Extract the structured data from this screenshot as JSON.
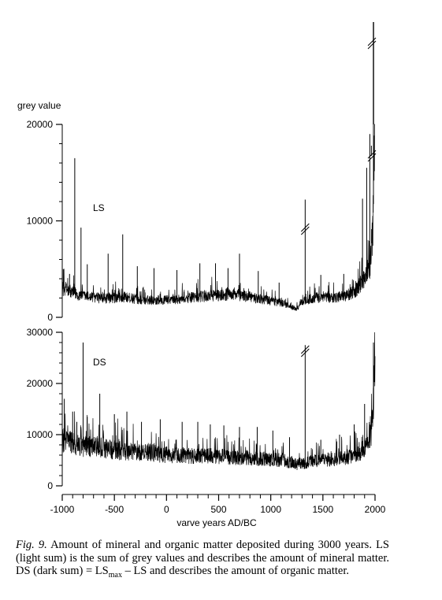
{
  "chart_data": [
    {
      "type": "line",
      "panel": "top",
      "title": "",
      "ylabel": "grey value",
      "xlabel": "",
      "series_label": "LS",
      "ylim": [
        0,
        20000
      ],
      "yticks": [
        "0",
        "10000",
        "20000"
      ],
      "xlim": [
        -1000,
        2000
      ],
      "axis_break_at_x": [
        1330,
        1970
      ],
      "baseline": [
        [
          -1000,
          3000
        ],
        [
          -900,
          2600
        ],
        [
          -800,
          2200
        ],
        [
          -700,
          2100
        ],
        [
          -600,
          1900
        ],
        [
          -500,
          2000
        ],
        [
          -400,
          2100
        ],
        [
          -300,
          1900
        ],
        [
          -200,
          1800
        ],
        [
          -100,
          1800
        ],
        [
          0,
          1800
        ],
        [
          100,
          1900
        ],
        [
          200,
          2000
        ],
        [
          300,
          2100
        ],
        [
          400,
          2200
        ],
        [
          500,
          2300
        ],
        [
          600,
          2400
        ],
        [
          700,
          2300
        ],
        [
          800,
          2100
        ],
        [
          900,
          1900
        ],
        [
          1000,
          1700
        ],
        [
          1100,
          1500
        ],
        [
          1200,
          1100
        ],
        [
          1250,
          900
        ],
        [
          1300,
          1600
        ],
        [
          1400,
          2000
        ],
        [
          1500,
          2100
        ],
        [
          1600,
          2000
        ],
        [
          1700,
          2200
        ],
        [
          1800,
          2600
        ],
        [
          1850,
          3200
        ],
        [
          1900,
          4000
        ],
        [
          1950,
          5500
        ],
        [
          1980,
          9000
        ],
        [
          2000,
          20000
        ]
      ],
      "spikes": [
        [
          -990,
          5000
        ],
        [
          -930,
          4500
        ],
        [
          -880,
          16500
        ],
        [
          -820,
          9300
        ],
        [
          -760,
          5500
        ],
        [
          -560,
          6600
        ],
        [
          -420,
          8600
        ],
        [
          -280,
          5300
        ],
        [
          -120,
          5100
        ],
        [
          100,
          4900
        ],
        [
          320,
          5600
        ],
        [
          470,
          5600
        ],
        [
          590,
          5100
        ],
        [
          700,
          6600
        ],
        [
          880,
          4800
        ],
        [
          1080,
          3600
        ],
        [
          1330,
          12200
        ],
        [
          1480,
          4400
        ],
        [
          1700,
          4500
        ],
        [
          1880,
          12300
        ],
        [
          1920,
          15500
        ],
        [
          1950,
          19000
        ],
        [
          1985,
          20000
        ]
      ]
    },
    {
      "type": "line",
      "panel": "bottom",
      "title": "",
      "ylabel": "",
      "xlabel": "varve years AD/BC",
      "series_label": "DS",
      "ylim": [
        0,
        30000
      ],
      "yticks": [
        "0",
        "10000",
        "20000",
        "30000"
      ],
      "xlim": [
        -1000,
        2000
      ],
      "xticks": [
        "-1000",
        "-500",
        "0",
        "500",
        "1000",
        "1500",
        "2000"
      ],
      "axis_break_at_x": [
        1330
      ],
      "baseline": [
        [
          -1000,
          9000
        ],
        [
          -900,
          8200
        ],
        [
          -800,
          7800
        ],
        [
          -700,
          7600
        ],
        [
          -600,
          7400
        ],
        [
          -500,
          7000
        ],
        [
          -400,
          6800
        ],
        [
          -300,
          6700
        ],
        [
          -200,
          6500
        ],
        [
          -100,
          6300
        ],
        [
          0,
          6100
        ],
        [
          100,
          6000
        ],
        [
          200,
          5800
        ],
        [
          300,
          5800
        ],
        [
          400,
          5900
        ],
        [
          500,
          5700
        ],
        [
          600,
          5600
        ],
        [
          700,
          5600
        ],
        [
          800,
          5500
        ],
        [
          900,
          5300
        ],
        [
          1000,
          5200
        ],
        [
          1100,
          5000
        ],
        [
          1200,
          4600
        ],
        [
          1250,
          4200
        ],
        [
          1300,
          4400
        ],
        [
          1400,
          4800
        ],
        [
          1500,
          5000
        ],
        [
          1600,
          5200
        ],
        [
          1700,
          5500
        ],
        [
          1800,
          6000
        ],
        [
          1850,
          6600
        ],
        [
          1900,
          7300
        ],
        [
          1950,
          8500
        ],
        [
          1980,
          13000
        ],
        [
          2000,
          28000
        ]
      ],
      "spikes": [
        [
          -980,
          17000
        ],
        [
          -900,
          14500
        ],
        [
          -860,
          12500
        ],
        [
          -800,
          28000
        ],
        [
          -760,
          13500
        ],
        [
          -640,
          18000
        ],
        [
          -500,
          14000
        ],
        [
          -380,
          14500
        ],
        [
          -240,
          12500
        ],
        [
          -60,
          13000
        ],
        [
          150,
          12500
        ],
        [
          300,
          12500
        ],
        [
          420,
          12000
        ],
        [
          550,
          11800
        ],
        [
          700,
          11500
        ],
        [
          870,
          11500
        ],
        [
          1020,
          10800
        ],
        [
          1180,
          9500
        ],
        [
          1330,
          27500
        ],
        [
          1480,
          9000
        ],
        [
          1660,
          10000
        ],
        [
          1800,
          12000
        ],
        [
          1900,
          16000
        ],
        [
          1985,
          28000
        ]
      ]
    }
  ],
  "caption": {
    "fig_label": "Fig. 9.",
    "text_1": " Amount of mineral and organic matter deposited during 3000 years. LS (light sum) is the sum of grey values and describes the amount of mineral matter. DS (dark sum) = LS",
    "sub": "max",
    "text_2": " – LS and describes the amount of organic matter."
  }
}
